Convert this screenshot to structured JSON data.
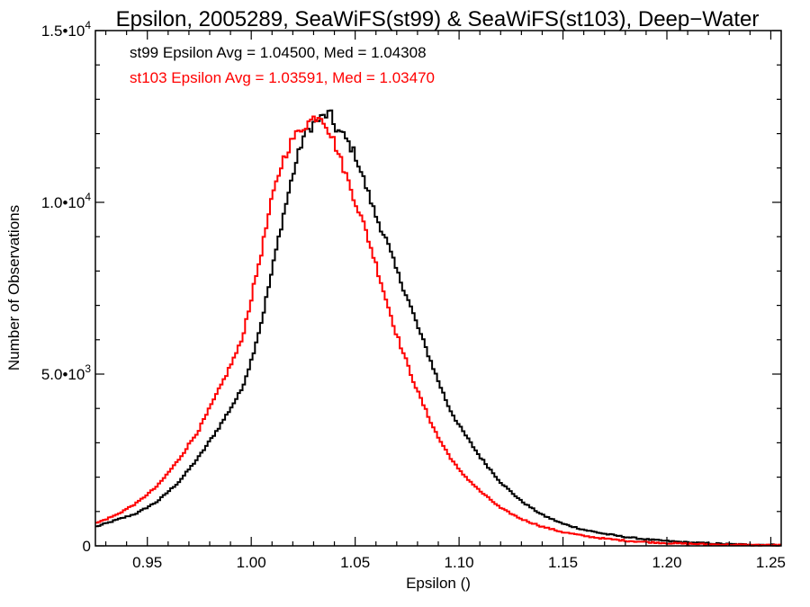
{
  "colors": {
    "background": "#ffffff",
    "axes": "#000000",
    "st99": "#000000",
    "st103": "#ff0000"
  },
  "chart_data": {
    "type": "step-histogram",
    "title": "Epsilon, 2005289, SeaWiFS(st99) & SeaWiFS(st103), Deep−Water",
    "xlabel": "Epsilon ()",
    "ylabel": "Number of Observations",
    "xlim": [
      0.925,
      1.255
    ],
    "ylim": [
      0,
      15000
    ],
    "x_ticks": [
      {
        "value": 0.95,
        "label": "0.95"
      },
      {
        "value": 1.0,
        "label": "1.00"
      },
      {
        "value": 1.05,
        "label": "1.05"
      },
      {
        "value": 1.1,
        "label": "1.10"
      },
      {
        "value": 1.15,
        "label": "1.15"
      },
      {
        "value": 1.2,
        "label": "1.20"
      },
      {
        "value": 1.25,
        "label": "1.25"
      }
    ],
    "y_ticks": [
      {
        "value": 0,
        "label": "0",
        "sup": ""
      },
      {
        "value": 5000,
        "label": "5.0•10",
        "sup": "3"
      },
      {
        "value": 10000,
        "label": "1.0•10",
        "sup": "4"
      },
      {
        "value": 15000,
        "label": "1.5•10",
        "sup": "4"
      }
    ],
    "grid": false,
    "annotations": [
      {
        "text": "st99 Epsilon Avg = 1.04500, Med = 1.04308",
        "color": "#000000"
      },
      {
        "text": "st103 Epsilon Avg = 1.03591, Med = 1.03470",
        "color": "#ff0000"
      }
    ],
    "series": [
      {
        "color": "#000000",
        "x": [
          0.925,
          0.935,
          0.945,
          0.955,
          0.965,
          0.975,
          0.985,
          0.995,
          1.0,
          1.005,
          1.01,
          1.015,
          1.02,
          1.025,
          1.03,
          1.035,
          1.038,
          1.04,
          1.045,
          1.05,
          1.055,
          1.06,
          1.065,
          1.07,
          1.075,
          1.08,
          1.085,
          1.09,
          1.095,
          1.1,
          1.11,
          1.12,
          1.13,
          1.14,
          1.15,
          1.16,
          1.17,
          1.18,
          1.19,
          1.2,
          1.21,
          1.22,
          1.23,
          1.24,
          1.255
        ],
        "y": [
          550,
          750,
          950,
          1300,
          1850,
          2600,
          3500,
          4500,
          5400,
          6550,
          8000,
          9500,
          10800,
          11900,
          12300,
          12500,
          12600,
          12200,
          11900,
          11400,
          10500,
          9600,
          8900,
          8000,
          7250,
          6400,
          5600,
          4800,
          4050,
          3500,
          2600,
          1850,
          1300,
          900,
          640,
          470,
          350,
          260,
          190,
          140,
          100,
          75,
          50,
          35,
          25
        ]
      },
      {
        "color": "#ff0000",
        "x": [
          0.925,
          0.935,
          0.945,
          0.955,
          0.965,
          0.975,
          0.985,
          0.995,
          1.0,
          1.005,
          1.01,
          1.015,
          1.02,
          1.025,
          1.03,
          1.033,
          1.035,
          1.04,
          1.045,
          1.05,
          1.055,
          1.06,
          1.065,
          1.07,
          1.075,
          1.08,
          1.085,
          1.09,
          1.095,
          1.1,
          1.11,
          1.12,
          1.13,
          1.14,
          1.15,
          1.16,
          1.17,
          1.18,
          1.19,
          1.2,
          1.21,
          1.22,
          1.23,
          1.24,
          1.255
        ],
        "y": [
          650,
          900,
          1250,
          1750,
          2500,
          3400,
          4600,
          5900,
          7200,
          8600,
          10100,
          11200,
          11850,
          12200,
          12450,
          12550,
          12400,
          11750,
          10900,
          10050,
          9200,
          8200,
          7150,
          6150,
          5300,
          4500,
          3800,
          3150,
          2650,
          2200,
          1600,
          1100,
          780,
          560,
          400,
          290,
          210,
          150,
          110,
          80,
          60,
          45,
          35,
          25,
          20
        ]
      }
    ]
  }
}
